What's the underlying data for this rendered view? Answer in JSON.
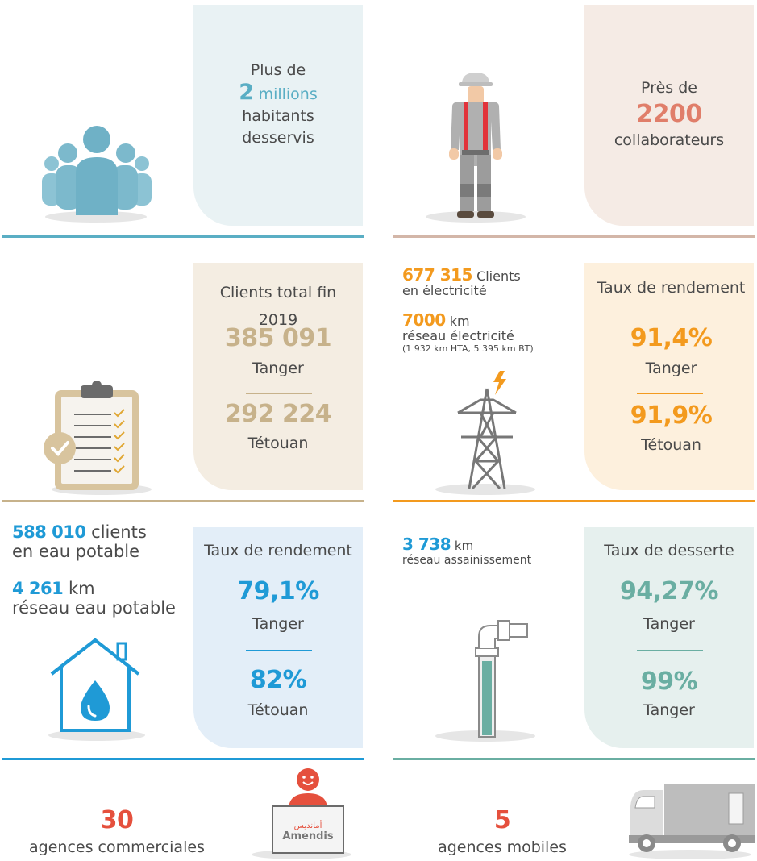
{
  "colors": {
    "blue": "#5aaec4",
    "salmon": "#e07e6a",
    "tan": "#c7b28b",
    "orange": "#f39a1e",
    "waterblue": "#1f9ad6",
    "teal": "#6aaea2",
    "red": "#e5503d",
    "text": "#4a4a4a"
  },
  "inhabitants": {
    "prefix": "Plus de",
    "number": "2",
    "unit": "millions",
    "line1": "habitants",
    "line2": "desservis"
  },
  "staff": {
    "prefix": "Près de",
    "number": "2200",
    "label": "collaborateurs"
  },
  "clients": {
    "title_line1": "Clients total fin",
    "title_line2": "2019",
    "tanger_value": "385 091",
    "tanger_label": "Tanger",
    "tetouan_value": "292 224",
    "tetouan_label": "Tétouan"
  },
  "electricity": {
    "clients_number": "677 315",
    "clients_label": "Clients",
    "clients_line2": "en électricité",
    "network_number": "7000",
    "network_unit": "km",
    "network_label": "réseau électricité",
    "network_detail": "(1 932 km HTA, 5 395 km BT)",
    "yield_title": "Taux de rendement",
    "tanger_value": "91,4%",
    "tanger_label": "Tanger",
    "tetouan_value": "91,9%",
    "tetouan_label": "Tétouan"
  },
  "water": {
    "clients_number": "588 010",
    "clients_label": "clients",
    "clients_line2": "en eau potable",
    "network_number": "4 261",
    "network_unit": "km",
    "network_label": "réseau eau potable",
    "yield_title": "Taux de rendement",
    "tanger_value": "79,1%",
    "tanger_label": "Tanger",
    "tetouan_value": "82%",
    "tetouan_label": "Tétouan"
  },
  "sanitation": {
    "network_number": "3 738",
    "network_unit": "km",
    "network_label": "réseau assainissement",
    "title": "Taux de desserte",
    "value1": "94,27%",
    "label1": "Tanger",
    "value2": "99%",
    "label2": "Tanger"
  },
  "agencies": {
    "commercial_number": "30",
    "commercial_label": "agences commerciales",
    "mobile_number": "5",
    "mobile_label": "agences mobiles",
    "sign_arabic": "أمانديس",
    "sign_latin": "Amendis"
  },
  "icons": [
    "people-icon",
    "worker-icon",
    "clipboard-icon",
    "pylon-icon",
    "house-drop-icon",
    "pipe-icon",
    "agent-desk-icon",
    "truck-icon"
  ]
}
